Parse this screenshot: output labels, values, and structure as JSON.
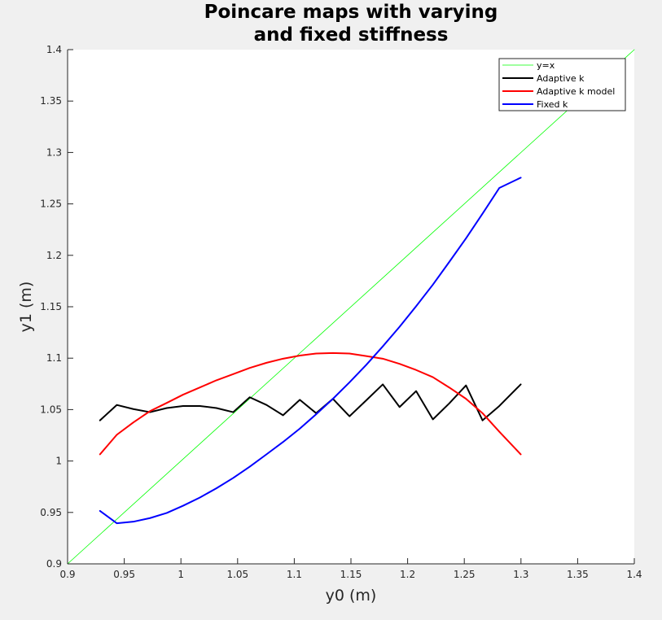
{
  "chart_data": {
    "type": "line",
    "title": [
      "Poincare maps with varying",
      "and fixed stiffness"
    ],
    "xlabel": "y0 (m)",
    "ylabel": "y1 (m)",
    "xlim": [
      0.9,
      1.4
    ],
    "ylim": [
      0.9,
      1.4
    ],
    "xticks": [
      0.9,
      0.95,
      1.0,
      1.05,
      1.1,
      1.15,
      1.2,
      1.25,
      1.3,
      1.35,
      1.4
    ],
    "xtick_labels": [
      "0.9",
      "0.95",
      "1",
      "1.05",
      "1.1",
      "1.15",
      "1.2",
      "1.25",
      "1.3",
      "1.35",
      "1.4"
    ],
    "yticks": [
      0.9,
      0.95,
      1.0,
      1.05,
      1.1,
      1.15,
      1.2,
      1.25,
      1.3,
      1.35,
      1.4
    ],
    "ytick_labels": [
      "0.9",
      "0.95",
      "1",
      "1.05",
      "1.1",
      "1.15",
      "1.2",
      "1.25",
      "1.3",
      "1.35",
      "1.4"
    ],
    "grid": false,
    "legend_position": "top-right",
    "series": [
      {
        "name": "y=x",
        "color": "#00ff00",
        "width": 0.8,
        "x": [
          0.9,
          1.4
        ],
        "y": [
          0.9,
          1.4
        ]
      },
      {
        "name": "Adaptive k",
        "color": "#000000",
        "width": 2,
        "x": [
          0.9286,
          0.9434,
          0.958,
          0.9727,
          0.9875,
          1.0019,
          1.0167,
          1.0313,
          1.0461,
          1.0607,
          1.0755,
          1.0901,
          1.1049,
          1.1193,
          1.1341,
          1.1487,
          1.1635,
          1.1781,
          1.1929,
          1.2075,
          1.2223,
          1.2367,
          1.2515,
          1.2661,
          1.2809,
          1.2998
        ],
        "y": [
          1.0395,
          1.0545,
          1.0505,
          1.0475,
          1.0515,
          1.0535,
          1.0535,
          1.0515,
          1.0475,
          1.062,
          1.0545,
          1.0445,
          1.0595,
          1.0465,
          1.0605,
          1.0435,
          1.059,
          1.0745,
          1.0525,
          1.068,
          1.0405,
          1.056,
          1.0735,
          1.0395,
          1.0535,
          1.0745
        ]
      },
      {
        "name": "Adaptive k model",
        "color": "#ff0000",
        "width": 2,
        "x": [
          0.9286,
          0.9434,
          0.958,
          0.9727,
          0.9875,
          1.0019,
          1.0167,
          1.0313,
          1.0461,
          1.0607,
          1.0755,
          1.0901,
          1.1049,
          1.1193,
          1.1341,
          1.1487,
          1.1635,
          1.1781,
          1.1929,
          1.2075,
          1.2223,
          1.2367,
          1.2515,
          1.2661,
          1.2809,
          1.2998
        ],
        "y": [
          1.0065,
          1.0255,
          1.0375,
          1.0485,
          1.0565,
          1.0645,
          1.0715,
          1.0785,
          1.0845,
          1.0905,
          1.0955,
          1.0995,
          1.1025,
          1.1045,
          1.105,
          1.1045,
          1.102,
          1.0995,
          1.0945,
          1.0885,
          1.0815,
          1.0715,
          1.0605,
          1.0465,
          1.0285,
          1.0065
        ]
      },
      {
        "name": "Fixed k",
        "color": "#0000ff",
        "width": 2,
        "x": [
          0.9286,
          0.9434,
          0.958,
          0.9727,
          0.9875,
          1.0019,
          1.0167,
          1.0313,
          1.0461,
          1.0607,
          1.0755,
          1.0901,
          1.1049,
          1.1193,
          1.1341,
          1.1487,
          1.1635,
          1.1781,
          1.1929,
          1.2075,
          1.2223,
          1.2367,
          1.2515,
          1.2661,
          1.2809,
          1.2998
        ],
        "y": [
          0.9515,
          0.9395,
          0.941,
          0.9445,
          0.9495,
          0.9565,
          0.9645,
          0.9735,
          0.9835,
          0.9945,
          1.0065,
          1.0185,
          1.0315,
          1.0455,
          1.0605,
          1.0765,
          1.0935,
          1.1115,
          1.1305,
          1.1505,
          1.1715,
          1.1935,
          1.2165,
          1.2405,
          1.2655,
          1.2755
        ]
      }
    ]
  }
}
